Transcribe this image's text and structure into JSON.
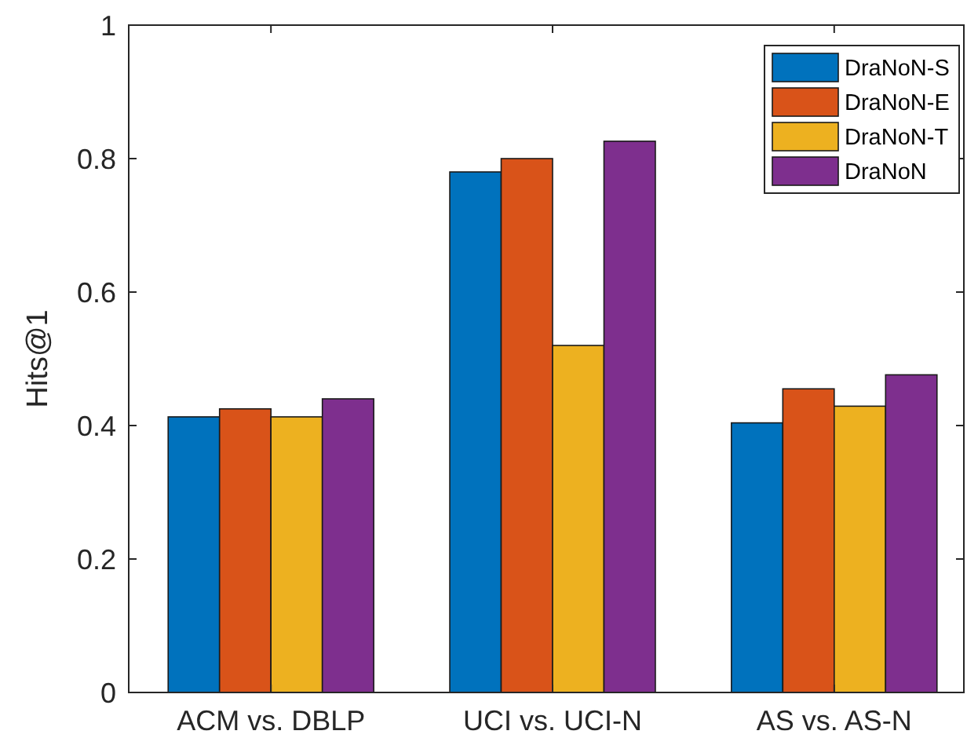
{
  "chart_data": {
    "type": "bar",
    "ylabel": "Hits@1",
    "categories": [
      "ACM vs. DBLP",
      "UCI vs. UCI-N",
      "AS vs. AS-N"
    ],
    "series": [
      {
        "name": "DraNoN-S",
        "color": "#0072bd",
        "values": [
          0.413,
          0.78,
          0.404
        ]
      },
      {
        "name": "DraNoN-E",
        "color": "#d95319",
        "values": [
          0.425,
          0.8,
          0.455
        ]
      },
      {
        "name": "DraNoN-T",
        "color": "#edb120",
        "values": [
          0.413,
          0.52,
          0.429
        ]
      },
      {
        "name": "DraNoN",
        "color": "#7e2f8e",
        "values": [
          0.44,
          0.826,
          0.476
        ]
      }
    ],
    "ylim": [
      0,
      1
    ],
    "yticks": [
      0,
      0.2,
      0.4,
      0.6,
      0.8,
      1
    ],
    "legend": "top right",
    "grid": false
  }
}
